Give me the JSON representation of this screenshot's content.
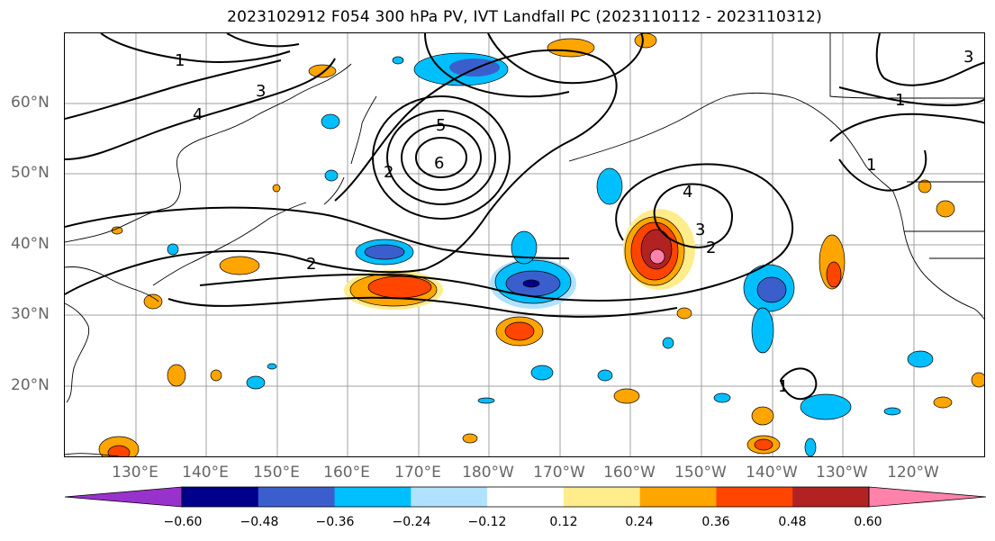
{
  "title": "2023102912 F054 300 hPa PV, IVT Landfall PC (2023110112 - 2023110312)",
  "lat_labels": [
    "60°N",
    "50°N",
    "40°N",
    "30°N",
    "20°N"
  ],
  "lon_labels": [
    "130°E",
    "140°E",
    "150°E",
    "160°E",
    "170°E",
    "180°W",
    "170°W",
    "160°W",
    "150°W",
    "140°W",
    "130°W",
    "120°W"
  ],
  "colorbar": {
    "ticks": [
      "−0.60",
      "−0.48",
      "−0.36",
      "−0.24",
      "−0.12",
      "0.12",
      "0.24",
      "0.36",
      "0.48",
      "0.60"
    ],
    "colors": [
      "#9932cc",
      "#00008b",
      "#3a5fcd",
      "#00bfff",
      "#b0e2ff",
      "#ffffff",
      "#ffec8b",
      "#ffa500",
      "#ff4500",
      "#b22222",
      "#ff82ab"
    ]
  },
  "contour_labels": {
    "c1": "1",
    "c2": "2",
    "c3": "3",
    "c4": "4",
    "c5": "5",
    "c6": "6",
    "c2b": "2",
    "c3b": "3",
    "c4b": "4",
    "c1b": "1",
    "c1c": "1",
    "c2c": "2",
    "c1d": "1",
    "c3c": "3"
  }
}
